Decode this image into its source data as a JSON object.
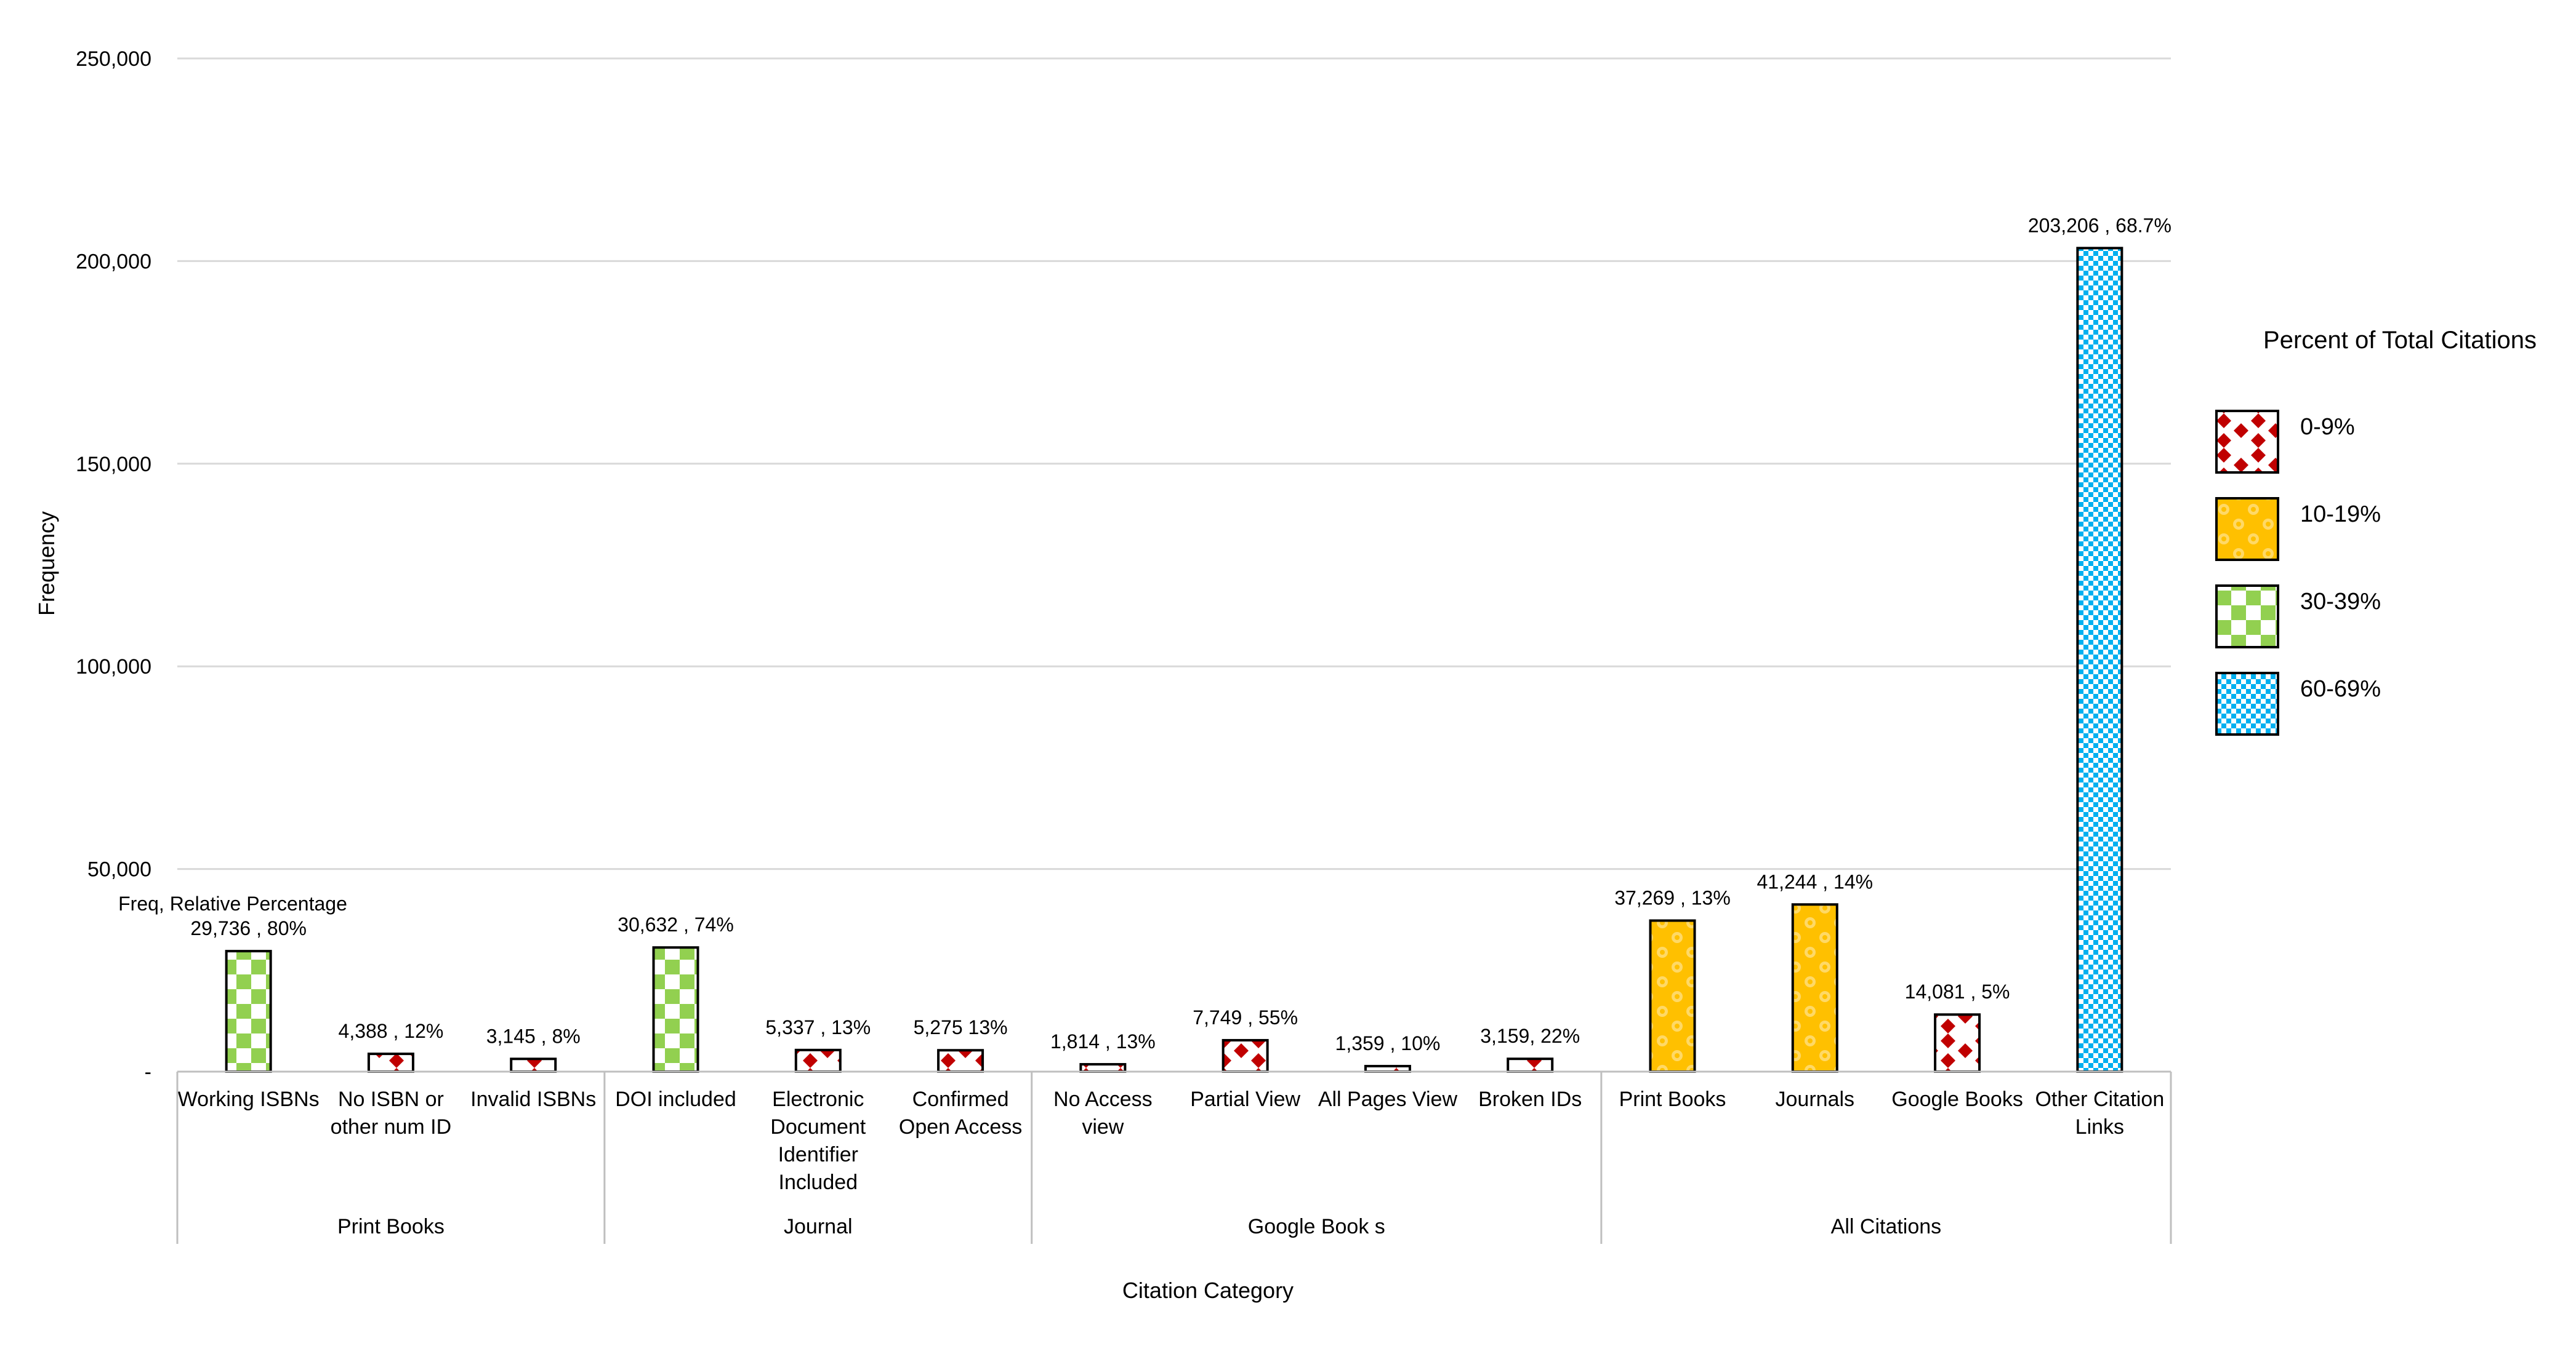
{
  "chart_data": {
    "type": "bar",
    "xlabel": "Citation Category",
    "ylabel": "Frequency",
    "ylim": [
      0,
      250000
    ],
    "yticks": [
      0,
      50000,
      100000,
      150000,
      200000,
      250000
    ],
    "ytick_labels": [
      "-",
      "50,000",
      "100,000",
      "150,000",
      "200,000",
      "250,000"
    ],
    "grid": true,
    "annotation": "Freq, Relative Percentage",
    "groups": [
      {
        "name": "Print Books",
        "count": 3
      },
      {
        "name": "Journal",
        "count": 3
      },
      {
        "name": "Google Book s",
        "count": 4
      },
      {
        "name": "All Citations",
        "count": 4
      }
    ],
    "bars": [
      {
        "category": [
          "Working ISBNs"
        ],
        "value": 29736,
        "label": "29,736 , 80%",
        "bucket": "30-39%"
      },
      {
        "category": [
          "No ISBN or",
          "other num ID"
        ],
        "value": 4388,
        "label": "4,388 , 12%",
        "bucket": "0-9%"
      },
      {
        "category": [
          "Invalid ISBNs"
        ],
        "value": 3145,
        "label": "3,145 , 8%",
        "bucket": "0-9%"
      },
      {
        "category": [
          "DOI included"
        ],
        "value": 30632,
        "label": "30,632 , 74%",
        "bucket": "30-39%"
      },
      {
        "category": [
          "Electronic",
          "Document",
          "Identifier",
          "Included"
        ],
        "value": 5337,
        "label": "5,337 , 13%",
        "bucket": "0-9%"
      },
      {
        "category": [
          "Confirmed",
          "Open Access"
        ],
        "value": 5275,
        "label": "5,275 13%",
        "bucket": "0-9%"
      },
      {
        "category": [
          "No Access",
          "view"
        ],
        "value": 1814,
        "label": "1,814 , 13%",
        "bucket": "0-9%"
      },
      {
        "category": [
          "Partial View"
        ],
        "value": 7749,
        "label": "7,749 , 55%",
        "bucket": "0-9%"
      },
      {
        "category": [
          "All Pages View"
        ],
        "value": 1359,
        "label": "1,359 , 10%",
        "bucket": "0-9%"
      },
      {
        "category": [
          "Broken IDs"
        ],
        "value": 3159,
        "label": "3,159, 22%",
        "bucket": "0-9%"
      },
      {
        "category": [
          "Print Books"
        ],
        "value": 37269,
        "label": "37,269 , 13%",
        "bucket": "10-19%"
      },
      {
        "category": [
          "Journals"
        ],
        "value": 41244,
        "label": "41,244 , 14%",
        "bucket": "10-19%"
      },
      {
        "category": [
          "Google Books"
        ],
        "value": 14081,
        "label": "14,081 , 5%",
        "bucket": "0-9%"
      },
      {
        "category": [
          "Other Citation",
          "Links"
        ],
        "value": 203206,
        "label": "203,206 , 68.7%",
        "bucket": "60-69%"
      }
    ],
    "legend": {
      "title": "Percent of Total Citations",
      "position": "right",
      "entries": [
        {
          "label": "0-9%",
          "pattern": "red-diamond"
        },
        {
          "label": "10-19%",
          "pattern": "yellow-circle"
        },
        {
          "label": "30-39%",
          "pattern": "green-checker"
        },
        {
          "label": "60-69%",
          "pattern": "blue-checker"
        }
      ]
    },
    "colors": {
      "0-9%": "#c00000",
      "10-19%": "#ffc000",
      "30-39%": "#92d050",
      "60-69%": "#00b0f0",
      "grid": "#d9d9d9",
      "axis": "#bfbfbf"
    }
  }
}
